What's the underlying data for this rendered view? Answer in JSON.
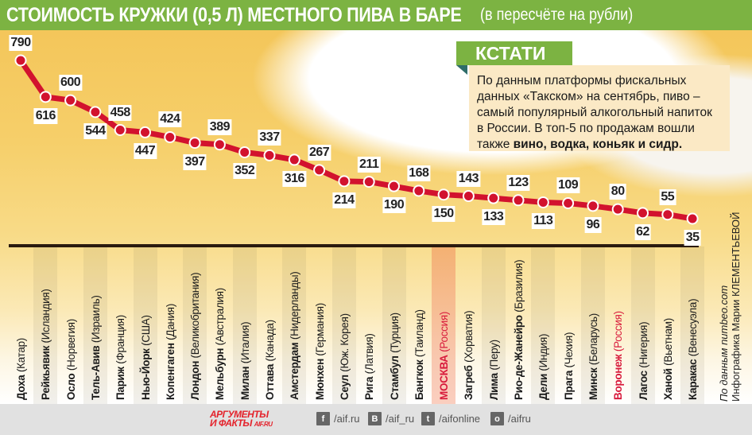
{
  "title": {
    "main": "СТОИМОСТЬ КРУЖКИ (0,5 Л) МЕСТНОГО ПИВА В БАРЕ",
    "sub": "(в пересчёте на рубли)"
  },
  "kstati": {
    "tag": "КСТАТИ",
    "text_plain": "По данным платформы фискальных данных «Такском» на сентябрь, пиво – самый популярный алкогольный напиток в России. В топ-5 по продажам вошли также ",
    "text_bold": "вино, водка, коньяк и сидр."
  },
  "credit": {
    "source": "По данным numbeo.com",
    "author": "Инфографика Марии КЛЕМЕНТЬЕВОЙ"
  },
  "footer": {
    "logo_line1": "АРГУМЕНТЫ",
    "logo_line2": "И ФАКТЫ",
    "logo_site": "AIF.RU",
    "social": [
      {
        "icon": "facebook-icon",
        "glyph": "f",
        "handle": "/aif.ru"
      },
      {
        "icon": "vk-icon",
        "glyph": "В",
        "handle": "/aif_ru"
      },
      {
        "icon": "twitter-icon",
        "glyph": "t",
        "handle": "/aifonline"
      },
      {
        "icon": "odnoklassniki-icon",
        "glyph": "о",
        "handle": "/aifru"
      }
    ]
  },
  "colors": {
    "title_green": "#7cb342",
    "line_red": "#d2122e",
    "highlight_red": "#d81b3c",
    "kstati_bg": "#fbe9c5"
  },
  "chart_data": {
    "type": "line",
    "title": "СТОИМОСТЬ КРУЖКИ (0,5 Л) МЕСТНОГО ПИВА В БАРЕ (в пересчёте на рубли)",
    "xlabel": "",
    "ylabel": "руб.",
    "grid": false,
    "legend": null,
    "categories": [
      {
        "city": "Доха",
        "country": "(Катар)"
      },
      {
        "city": "Рейкьявик",
        "country": "(Исландия)"
      },
      {
        "city": "Осло",
        "country": "(Норвегия)"
      },
      {
        "city": "Тель-Авив",
        "country": "(Израиль)"
      },
      {
        "city": "Париж",
        "country": "(Франция)"
      },
      {
        "city": "Нью-Йорк",
        "country": "(США)"
      },
      {
        "city": "Копенгаген",
        "country": "(Дания)"
      },
      {
        "city": "Лондон",
        "country": "(Великобритания)"
      },
      {
        "city": "Мельбурн",
        "country": "(Австралия)"
      },
      {
        "city": "Милан",
        "country": "(Италия)"
      },
      {
        "city": "Оттава",
        "country": "(Канада)"
      },
      {
        "city": "Амстердам",
        "country": "(Нидерланды)"
      },
      {
        "city": "Мюнхен",
        "country": "(Германия)"
      },
      {
        "city": "Сеул",
        "country": "(Юж. Корея)"
      },
      {
        "city": "Рига",
        "country": "(Латвия)"
      },
      {
        "city": "Стамбул",
        "country": "(Турция)"
      },
      {
        "city": "Бангкок",
        "country": "(Таиланд)"
      },
      {
        "city": "МОСКВА",
        "country": "(Россия)",
        "highlight": true
      },
      {
        "city": "Загреб",
        "country": "(Хорватия)"
      },
      {
        "city": "Лима",
        "country": "(Перу)"
      },
      {
        "city": "Рио-де-Жанейро",
        "country": "(Бразилия)"
      },
      {
        "city": "Дели",
        "country": "(Индия)"
      },
      {
        "city": "Прага",
        "country": "(Чехия)"
      },
      {
        "city": "Минск",
        "country": "(Беларусь)"
      },
      {
        "city": "Воронеж",
        "country": "(Россия)",
        "highlight": true
      },
      {
        "city": "Лагос",
        "country": "(Нигерия)"
      },
      {
        "city": "Ханой",
        "country": "(Вьетнам)"
      },
      {
        "city": "Каракас",
        "country": "(Венесуэла)"
      }
    ],
    "values": [
      790,
      616,
      600,
      544,
      458,
      447,
      424,
      397,
      389,
      352,
      337,
      316,
      267,
      214,
      211,
      190,
      168,
      150,
      143,
      133,
      123,
      113,
      109,
      96,
      80,
      62,
      55,
      35
    ],
    "label_position": [
      "above",
      "below",
      "above",
      "below",
      "above",
      "below",
      "above",
      "below",
      "above",
      "below",
      "above",
      "below",
      "above",
      "below",
      "above",
      "below",
      "above",
      "below",
      "above",
      "below",
      "above",
      "below",
      "above",
      "below",
      "above",
      "below",
      "above",
      "below"
    ]
  }
}
